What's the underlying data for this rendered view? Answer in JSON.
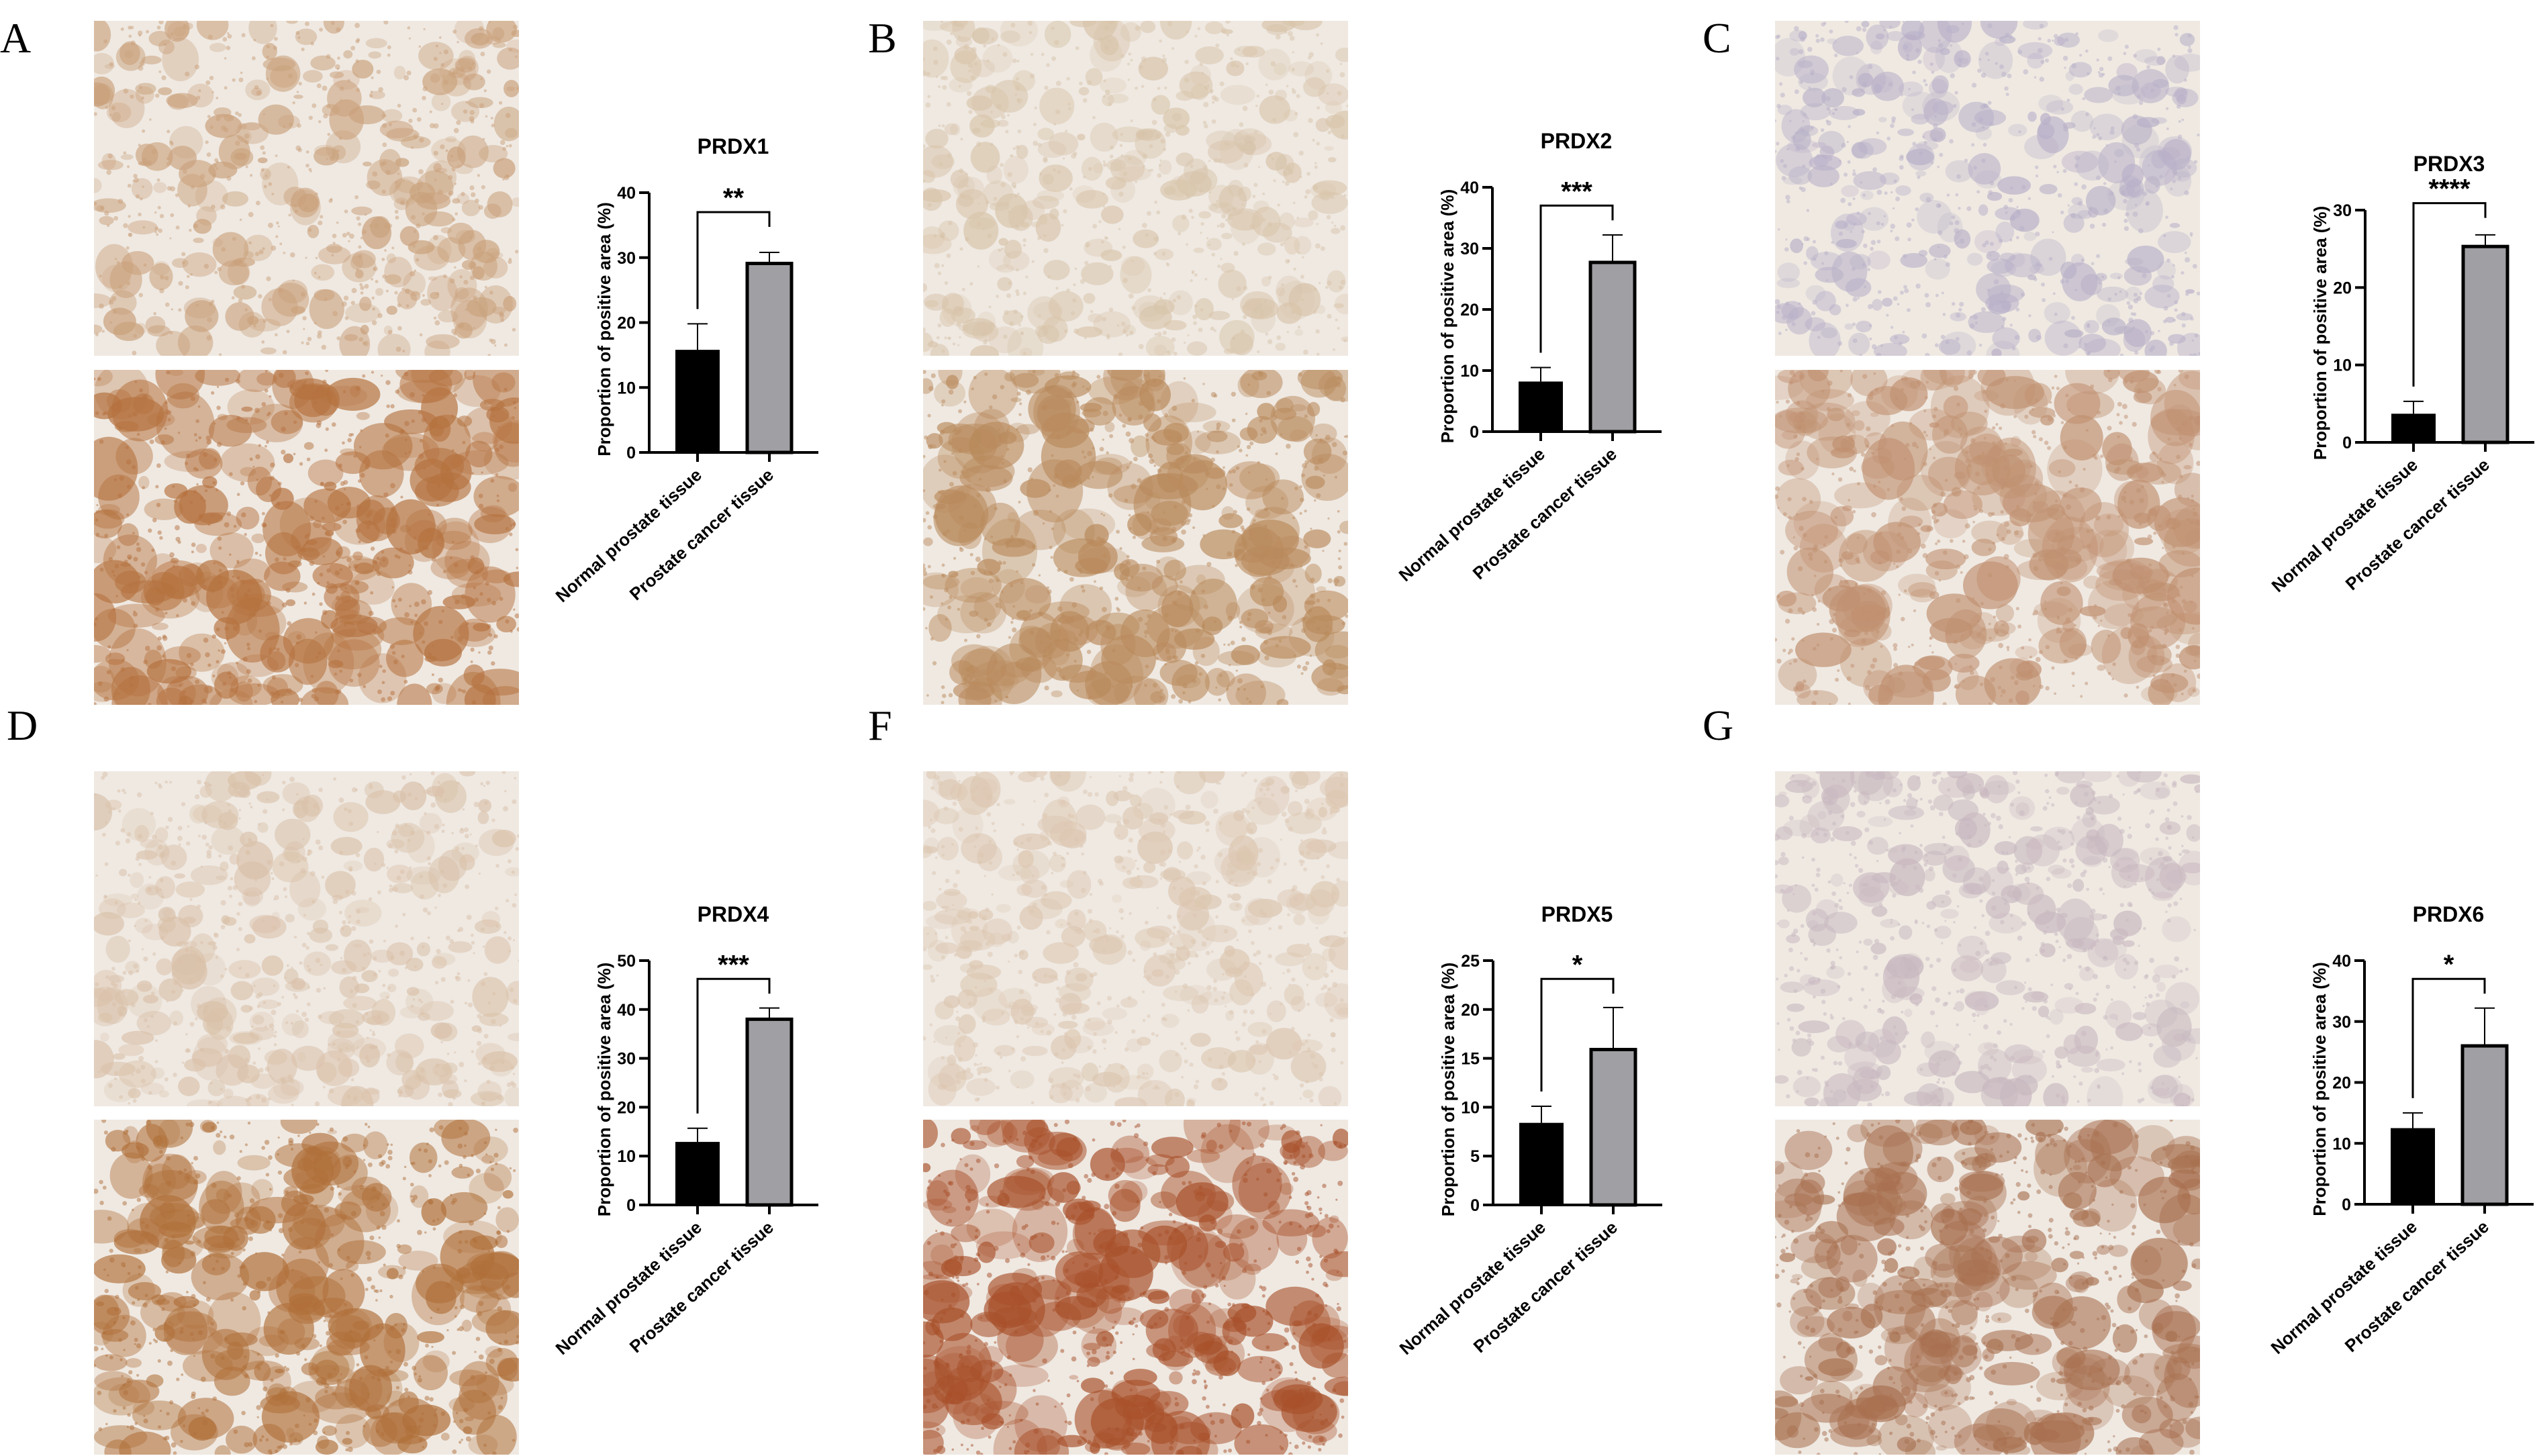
{
  "chart_data": [
    {
      "panel": "A",
      "type": "bar",
      "title": "PRDX1",
      "ylabel": "Proportion of positive area (%)",
      "categories": [
        "Normal prostate tissue",
        "Prostate cancer tissue"
      ],
      "values": [
        15.8,
        29.1
      ],
      "error": [
        4.0,
        1.7
      ],
      "ylim": [
        0,
        40
      ],
      "yticks": [
        0,
        10,
        20,
        30,
        40
      ],
      "significance": "**",
      "colors": [
        "#000000",
        "#a0a0a4"
      ],
      "grid": false,
      "stain_colors": [
        "#c9a07a",
        "#b5723f"
      ]
    },
    {
      "panel": "B",
      "type": "bar",
      "title": "PRDX2",
      "ylabel": "Proportion of positive area (%)",
      "categories": [
        "Normal prostate tissue",
        "Prostate cancer tissue"
      ],
      "values": [
        8.2,
        27.7
      ],
      "error": [
        2.3,
        4.5
      ],
      "ylim": [
        0,
        40
      ],
      "yticks": [
        0,
        10,
        20,
        30,
        40
      ],
      "significance": "***",
      "colors": [
        "#000000",
        "#a0a0a4"
      ],
      "grid": false,
      "stain_colors": [
        "#d8c4aa",
        "#b98a5c"
      ]
    },
    {
      "panel": "C",
      "type": "bar",
      "title": "PRDX3",
      "ylabel": "Proportion of positive area (%)",
      "categories": [
        "Normal prostate tissue",
        "Prostate cancer tissue"
      ],
      "values": [
        3.7,
        25.3
      ],
      "error": [
        1.6,
        1.5
      ],
      "ylim": [
        0,
        30
      ],
      "yticks": [
        0,
        10,
        20,
        30
      ],
      "significance": "****",
      "colors": [
        "#000000",
        "#a0a0a4"
      ],
      "grid": false,
      "stain_colors": [
        "#b8b0c8",
        "#c09070"
      ]
    },
    {
      "panel": "D",
      "type": "bar",
      "title": "PRDX4",
      "ylabel": "Proportion of positive area (%)",
      "categories": [
        "Normal prostate tissue",
        "Prostate cancer tissue"
      ],
      "values": [
        12.9,
        38.0
      ],
      "error": [
        2.8,
        2.3
      ],
      "ylim": [
        0,
        50
      ],
      "yticks": [
        0,
        10,
        20,
        30,
        40,
        50
      ],
      "significance": "***",
      "colors": [
        "#000000",
        "#a0a0a4"
      ],
      "grid": false,
      "stain_colors": [
        "#d9c0a8",
        "#b0703a"
      ]
    },
    {
      "panel": "F",
      "type": "bar",
      "title": "PRDX5",
      "ylabel": "Proportion of positive area (%)",
      "categories": [
        "Normal prostate tissue",
        "Prostate cancer tissue"
      ],
      "values": [
        8.4,
        15.9
      ],
      "error": [
        1.7,
        4.3
      ],
      "ylim": [
        0,
        25
      ],
      "yticks": [
        0,
        5,
        10,
        15,
        20,
        25
      ],
      "significance": "*",
      "colors": [
        "#000000",
        "#a0a0a4"
      ],
      "grid": false,
      "stain_colors": [
        "#dcc6b0",
        "#a8502a"
      ]
    },
    {
      "panel": "G",
      "type": "bar",
      "title": "PRDX6",
      "ylabel": "Proportion of positive area (%)",
      "categories": [
        "Normal prostate tissue",
        "Prostate cancer tissue"
      ],
      "values": [
        12.5,
        26.0
      ],
      "error": [
        2.5,
        6.2
      ],
      "ylim": [
        0,
        40
      ],
      "yticks": [
        0,
        10,
        20,
        30,
        40
      ],
      "significance": "*",
      "colors": [
        "#000000",
        "#a0a0a4"
      ],
      "grid": false,
      "stain_colors": [
        "#c8b8c0",
        "#a87050"
      ]
    }
  ]
}
